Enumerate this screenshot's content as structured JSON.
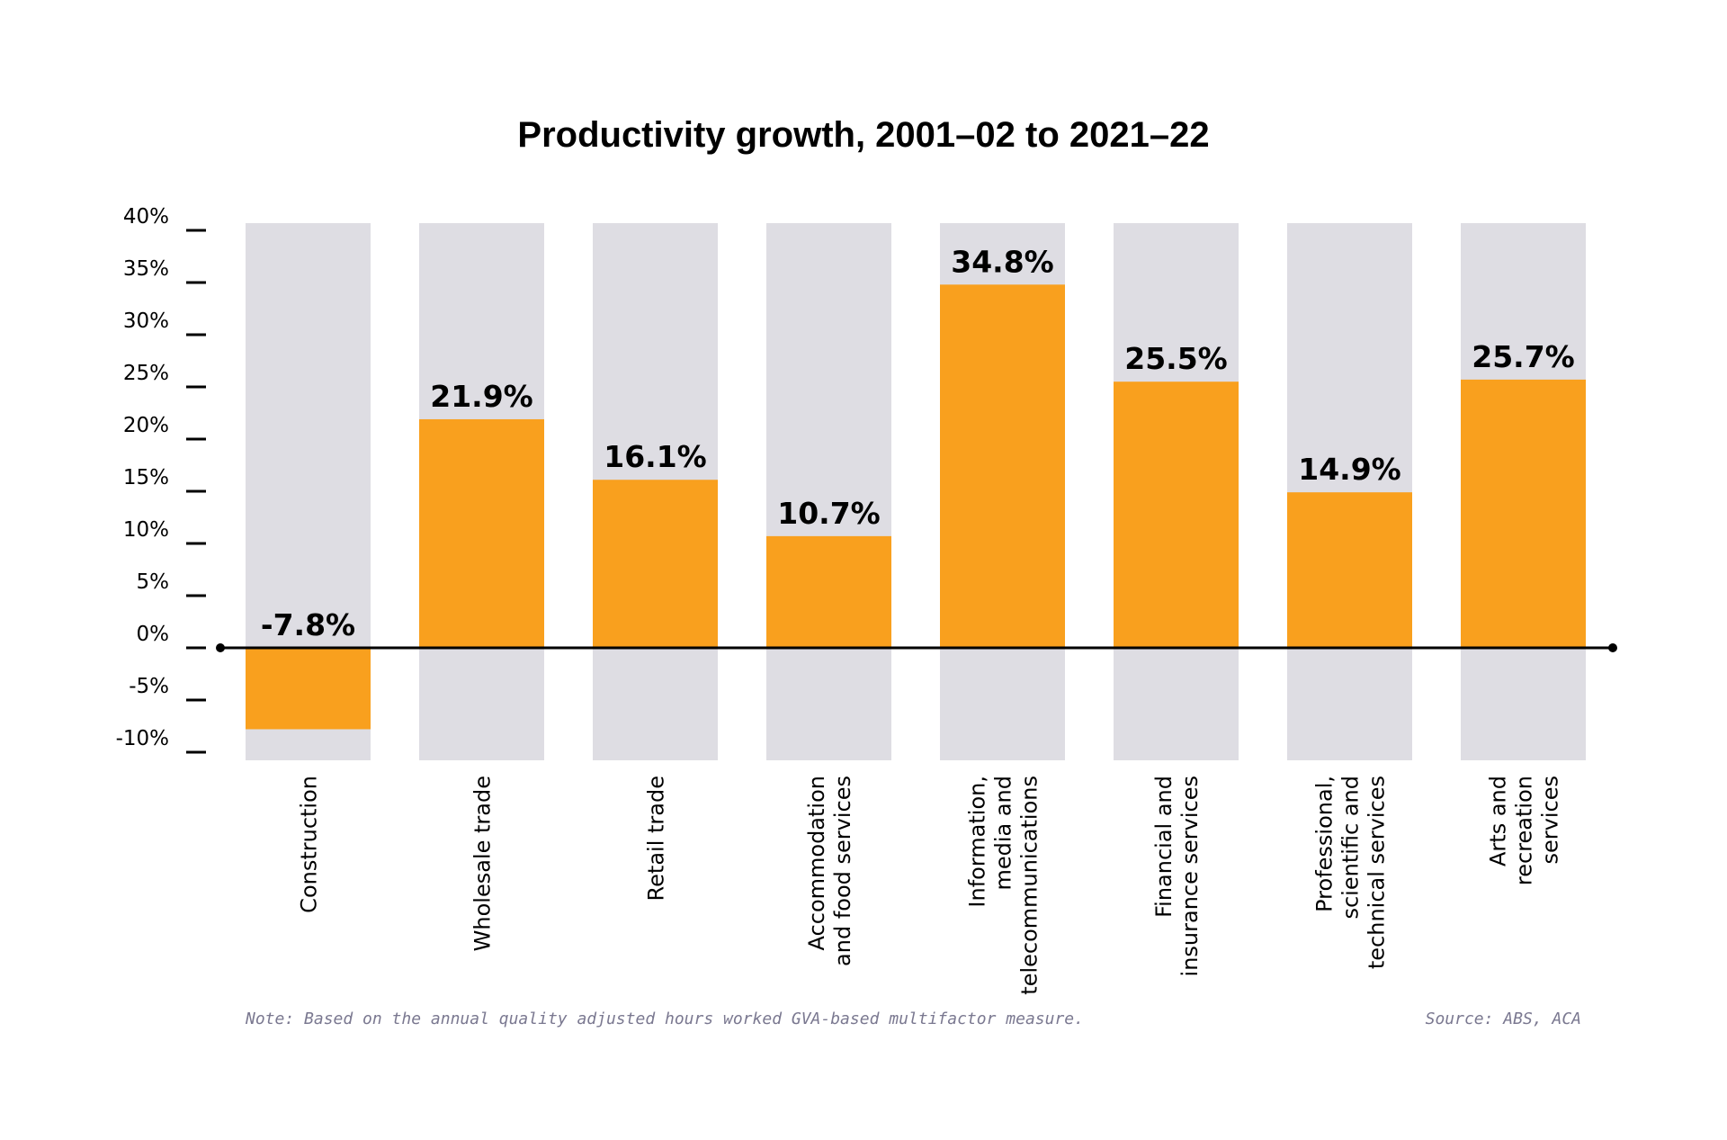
{
  "chart_data": {
    "type": "bar",
    "title": "Productivity growth, 2001–02 to 2021–22",
    "categories": [
      [
        "Construction"
      ],
      [
        "Wholesale trade"
      ],
      [
        "Retail trade"
      ],
      [
        "Accommodation",
        "and food services"
      ],
      [
        "Information,",
        "media and",
        "telecommunications"
      ],
      [
        "Financial and",
        "insurance services"
      ],
      [
        "Professional,",
        "scientific and",
        "technical services"
      ],
      [
        "Arts and",
        "recreation",
        "services"
      ]
    ],
    "values": [
      -7.8,
      21.9,
      16.1,
      10.7,
      34.8,
      25.5,
      14.9,
      25.7
    ],
    "value_labels": [
      "-7.8%",
      "21.9%",
      "16.1%",
      "10.7%",
      "34.8%",
      "25.5%",
      "14.9%",
      "25.7%"
    ],
    "ylim": [
      -10,
      40
    ],
    "yticks": [
      40,
      35,
      30,
      25,
      20,
      15,
      10,
      5,
      0,
      -5,
      -10
    ],
    "ytick_labels": [
      "40%",
      "35%",
      "30%",
      "25%",
      "20%",
      "15%",
      "10%",
      "5%",
      "0%",
      "-5%",
      "-10%"
    ],
    "xlabel": "",
    "ylabel": "",
    "grid": false,
    "legend": "none",
    "colors": {
      "bar": "#F9A01E",
      "track": "#DEDDE3",
      "axis": "#000000",
      "note": "#7A7890"
    }
  },
  "footnote": "Note: Based on the annual quality adjusted hours worked GVA-based multifactor measure.",
  "source": "Source: ABS, ACA"
}
